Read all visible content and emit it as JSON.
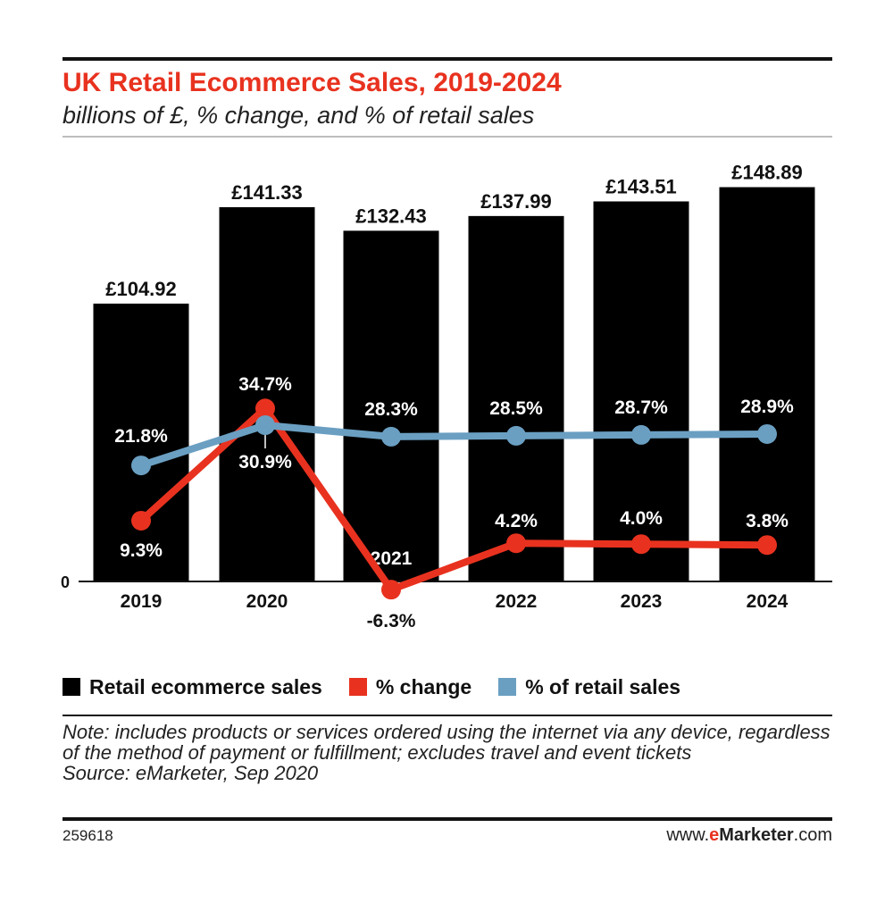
{
  "header": {
    "title": "UK Retail Ecommerce Sales, 2019-2024",
    "subtitle": "billions of £, % change, and % of retail sales"
  },
  "chart_data": {
    "type": "bar",
    "categories": [
      "2019",
      "2020",
      "2021",
      "2022",
      "2023",
      "2024"
    ],
    "bar_labels": [
      "£104.92",
      "£141.33",
      "£132.43",
      "£137.99",
      "£143.51",
      "£148.89"
    ],
    "y_zero_label": "0",
    "series": [
      {
        "name": "Retail ecommerce sales",
        "kind": "bar",
        "values": [
          104.92,
          141.33,
          132.43,
          137.99,
          143.51,
          148.89
        ],
        "color": "#000000"
      },
      {
        "name": "% change",
        "kind": "line",
        "values": [
          9.3,
          34.7,
          -6.3,
          4.2,
          4.0,
          3.8
        ],
        "labels": [
          "9.3%",
          "34.7%",
          "-6.3%",
          "4.2%",
          "4.0%",
          "3.8%"
        ],
        "color": "#e8321f"
      },
      {
        "name": "% of retail sales",
        "kind": "line",
        "values": [
          21.8,
          30.9,
          28.3,
          28.5,
          28.7,
          28.9
        ],
        "labels": [
          "21.8%",
          "30.9%",
          "28.3%",
          "28.5%",
          "28.7%",
          "28.9%"
        ],
        "color": "#6a9fc2"
      }
    ]
  },
  "legend": {
    "items": [
      {
        "label": "Retail ecommerce sales",
        "color": "#000000"
      },
      {
        "label": "% change",
        "color": "#e8321f"
      },
      {
        "label": "% of retail sales",
        "color": "#6a9fc2"
      }
    ]
  },
  "footer": {
    "note": "Note: includes products or services ordered using the internet via any device, regardless of the method of payment or fulfillment; excludes travel and event tickets",
    "source": "Source: eMarketer, Sep 2020",
    "chart_id": "259618",
    "brand_prefix": "www.",
    "brand_e": "e",
    "brand_name": "Marketer",
    "brand_suffix": ".com"
  }
}
